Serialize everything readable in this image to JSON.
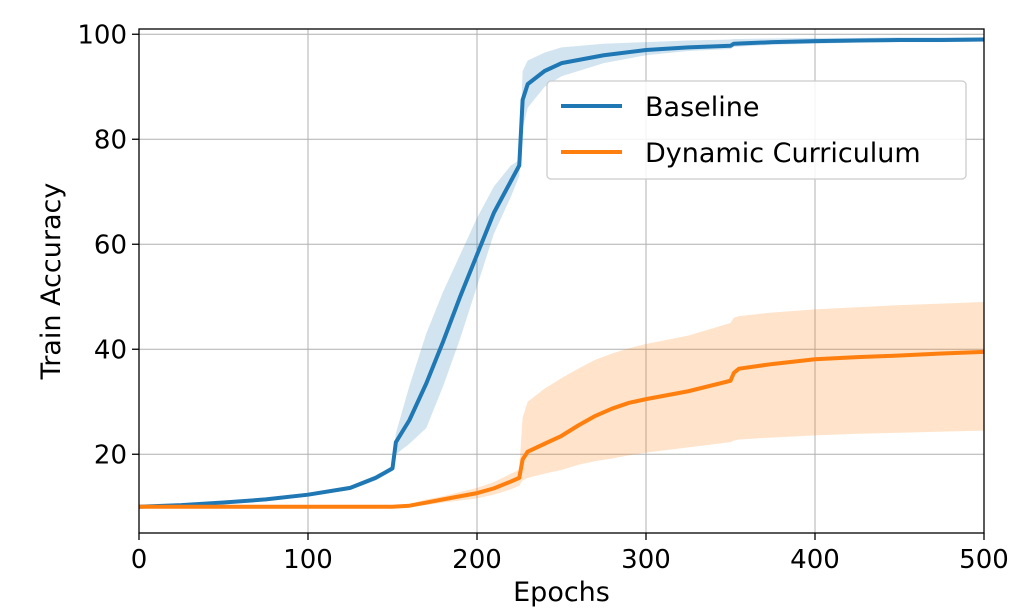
{
  "chart_data": {
    "type": "line",
    "title": "",
    "xlabel": "Epochs",
    "ylabel": "Train Accuracy",
    "xlim": [
      0,
      500
    ],
    "ylim": [
      5,
      101
    ],
    "xticks": [
      0,
      100,
      200,
      300,
      400,
      500
    ],
    "yticks": [
      20,
      40,
      60,
      80,
      100
    ],
    "xtick_labels": [
      "0",
      "100",
      "200",
      "300",
      "400",
      "500"
    ],
    "ytick_labels": [
      "20",
      "40",
      "60",
      "80",
      "100"
    ],
    "grid": true,
    "legend_position": "upper-right",
    "series": [
      {
        "name": "Baseline",
        "color": "#1f77b4",
        "band_color": "#1f77b4",
        "x": [
          0,
          25,
          50,
          75,
          100,
          125,
          140,
          150,
          152,
          160,
          170,
          180,
          190,
          200,
          210,
          220,
          225,
          227,
          230,
          240,
          250,
          275,
          300,
          325,
          350,
          352,
          375,
          400,
          425,
          450,
          475,
          500
        ],
        "y": [
          10,
          10.3,
          10.8,
          11.4,
          12.3,
          13.6,
          15.5,
          17.3,
          22.3,
          26.5,
          33.5,
          41.5,
          50,
          58,
          66,
          72,
          75,
          87.5,
          90.5,
          93,
          94.5,
          96,
          97,
          97.5,
          97.8,
          98.2,
          98.5,
          98.7,
          98.8,
          98.9,
          98.9,
          99
        ],
        "lower": [
          10,
          10.2,
          10.6,
          11.2,
          12,
          13.2,
          15,
          16.8,
          20,
          22,
          25,
          33,
          42,
          52,
          62,
          69,
          73,
          82,
          86,
          90,
          92,
          94.5,
          96,
          96.8,
          97.2,
          97.6,
          98,
          98.2,
          98.4,
          98.5,
          98.5,
          98.6
        ],
        "upper": [
          10,
          10.4,
          11,
          11.7,
          12.6,
          14,
          16,
          17.8,
          24,
          33,
          43,
          51,
          58,
          65,
          71,
          75,
          76,
          93,
          95,
          96.5,
          97.5,
          98.2,
          98.5,
          98.8,
          99,
          99.1,
          99.2,
          99.3,
          99.3,
          99.4,
          99.4,
          99.4
        ]
      },
      {
        "name": "Dynamic Curriculum",
        "color": "#ff7f0e",
        "band_color": "#ff7f0e",
        "x": [
          0,
          50,
          100,
          150,
          160,
          170,
          180,
          190,
          200,
          210,
          220,
          225,
          227,
          230,
          240,
          250,
          260,
          270,
          280,
          290,
          300,
          325,
          350,
          352,
          355,
          375,
          400,
          425,
          450,
          475,
          500
        ],
        "y": [
          10,
          10,
          10,
          10,
          10.2,
          10.8,
          11.4,
          12,
          12.6,
          13.5,
          14.8,
          15.5,
          19,
          20.5,
          22,
          23.5,
          25.5,
          27.3,
          28.7,
          29.8,
          30.5,
          32,
          34,
          35.5,
          36.3,
          37.2,
          38.1,
          38.5,
          38.8,
          39.2,
          39.5
        ],
        "lower": [
          10,
          10,
          10,
          10,
          10,
          10.3,
          10.8,
          11.2,
          11.6,
          12.3,
          13.3,
          14,
          15,
          15.5,
          16.3,
          17,
          18,
          18.7,
          19.2,
          19.8,
          20.3,
          21.3,
          22.3,
          22.6,
          22.8,
          23.2,
          23.6,
          23.9,
          24.1,
          24.3,
          24.5
        ],
        "upper": [
          10,
          10,
          10,
          10,
          10.5,
          11.4,
          12,
          12.8,
          13.6,
          14.7,
          16.3,
          17,
          27,
          30,
          32.5,
          34.5,
          36.3,
          38,
          39.2,
          40.2,
          41,
          42.6,
          45,
          46,
          46.3,
          47,
          47.6,
          48,
          48.4,
          48.7,
          49
        ]
      }
    ]
  }
}
